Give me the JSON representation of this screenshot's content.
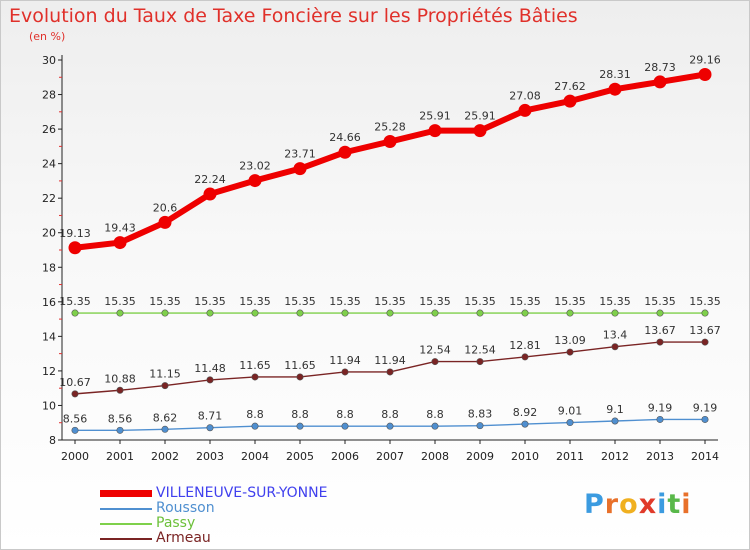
{
  "chart_data": {
    "type": "line",
    "title": "Evolution du Taux de Taxe Foncière sur les Propriétés Bâties",
    "unit_label": "(en %)",
    "x": [
      "2000",
      "2001",
      "2002",
      "2003",
      "2004",
      "2005",
      "2006",
      "2007",
      "2008",
      "2009",
      "2010",
      "2011",
      "2012",
      "2013",
      "2014"
    ],
    "y_ticks": [
      8,
      10,
      12,
      14,
      16,
      18,
      20,
      22,
      24,
      26,
      28,
      30
    ],
    "ylim": [
      8,
      30
    ],
    "legend_position": "bottom-left",
    "series": [
      {
        "name": "VILLENEUVE-SUR-YONNE",
        "color": "#ee0000",
        "label_color": "#4040ee",
        "values": [
          19.13,
          19.43,
          20.6,
          22.24,
          23.02,
          23.71,
          24.66,
          25.28,
          25.91,
          25.91,
          27.08,
          27.62,
          28.31,
          28.73,
          29.16
        ],
        "labels": [
          "19.13",
          "19.43",
          "20.6",
          "22.24",
          "23.02",
          "23.71",
          "24.66",
          "25.28",
          "25.91",
          "25.91",
          "27.08",
          "27.62",
          "28.31",
          "28.73",
          "29.16"
        ]
      },
      {
        "name": "Rousson",
        "color": "#4f8fd0",
        "label_color": "#4f8fd0",
        "values": [
          8.56,
          8.56,
          8.62,
          8.71,
          8.8,
          8.8,
          8.8,
          8.8,
          8.8,
          8.83,
          8.92,
          9.01,
          9.1,
          9.19,
          9.19
        ],
        "labels": [
          "8.56",
          "8.56",
          "8.62",
          "8.71",
          "8.8",
          "8.8",
          "8.8",
          "8.8",
          "8.8",
          "8.83",
          "8.92",
          "9.01",
          "9.1",
          "9.19",
          "9.19"
        ]
      },
      {
        "name": "Passy",
        "color": "#7ed04a",
        "label_color": "#6cc03a",
        "values": [
          15.35,
          15.35,
          15.35,
          15.35,
          15.35,
          15.35,
          15.35,
          15.35,
          15.35,
          15.35,
          15.35,
          15.35,
          15.35,
          15.35,
          15.35
        ],
        "labels": [
          "15.35",
          "15.35",
          "15.35",
          "15.35",
          "15.35",
          "15.35",
          "15.35",
          "15.35",
          "15.35",
          "15.35",
          "15.35",
          "15.35",
          "15.35",
          "15.35",
          "15.35"
        ]
      },
      {
        "name": "Armeau",
        "color": "#7a2424",
        "label_color": "#7a2424",
        "values": [
          10.67,
          10.88,
          11.15,
          11.48,
          11.65,
          11.65,
          11.94,
          11.94,
          12.54,
          12.54,
          12.81,
          13.09,
          13.4,
          13.67,
          13.67
        ],
        "labels": [
          "10.67",
          "10.88",
          "11.15",
          "11.48",
          "11.65",
          "11.65",
          "11.94",
          "11.94",
          "12.54",
          "12.54",
          "12.81",
          "13.09",
          "13.4",
          "13.67",
          "13.67"
        ]
      }
    ]
  },
  "logo": {
    "text": "Proxiti",
    "colors": [
      "#3b9be0",
      "#e8702a",
      "#f0b020",
      "#e03a2a",
      "#3b9be0",
      "#59b84a",
      "#e8702a"
    ]
  }
}
